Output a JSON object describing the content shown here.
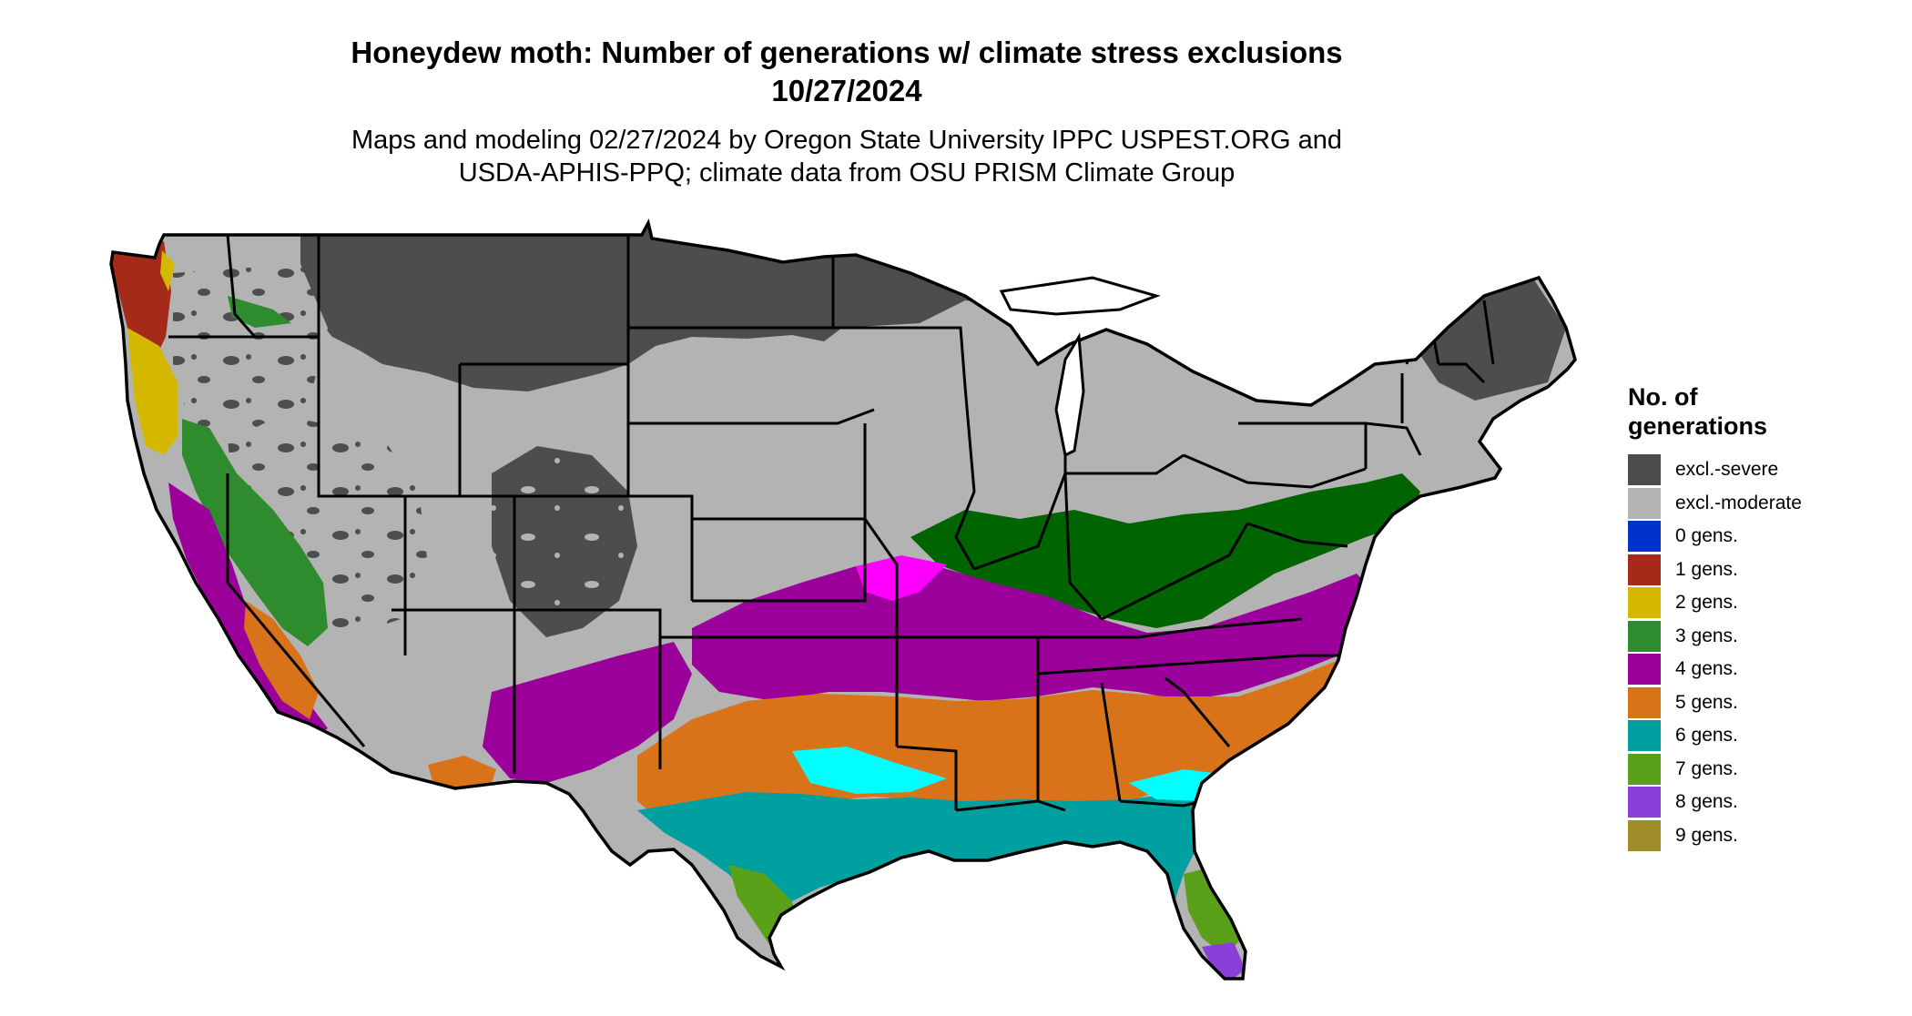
{
  "title": {
    "line1": "Honeydew moth: Number of generations w/ climate stress exclusions",
    "line2": "10/27/2024"
  },
  "subtitle": {
    "line1": "Maps and modeling 02/27/2024 by Oregon State University IPPC USPEST.ORG and",
    "line2": "USDA-APHIS-PPQ; climate data from OSU PRISM Climate Group"
  },
  "legend": {
    "title_line1": "No. of",
    "title_line2": "generations",
    "items": [
      {
        "label": "excl.-severe",
        "color": "#4d4d4d"
      },
      {
        "label": "excl.-moderate",
        "color": "#b3b3b3"
      },
      {
        "label": "0 gens.",
        "color": "#0033cc"
      },
      {
        "label": "1 gens.",
        "color": "#a52a1a"
      },
      {
        "label": "2 gens.",
        "color": "#d4b800"
      },
      {
        "label": "3 gens.",
        "color": "#2e8b2e"
      },
      {
        "label": "4 gens.",
        "color": "#9b009b"
      },
      {
        "label": "5 gens.",
        "color": "#d9731a"
      },
      {
        "label": "6 gens.",
        "color": "#00a0a0"
      },
      {
        "label": "7 gens.",
        "color": "#5aa018"
      },
      {
        "label": "8 gens.",
        "color": "#8a3fd9"
      },
      {
        "label": "9 gens.",
        "color": "#a08c28"
      }
    ]
  },
  "map_colors": {
    "bright_magenta": "#ff00ff",
    "cyan": "#00ffff",
    "dark_green": "#006400",
    "lime": "#aaff00",
    "boundary": "#000000"
  }
}
